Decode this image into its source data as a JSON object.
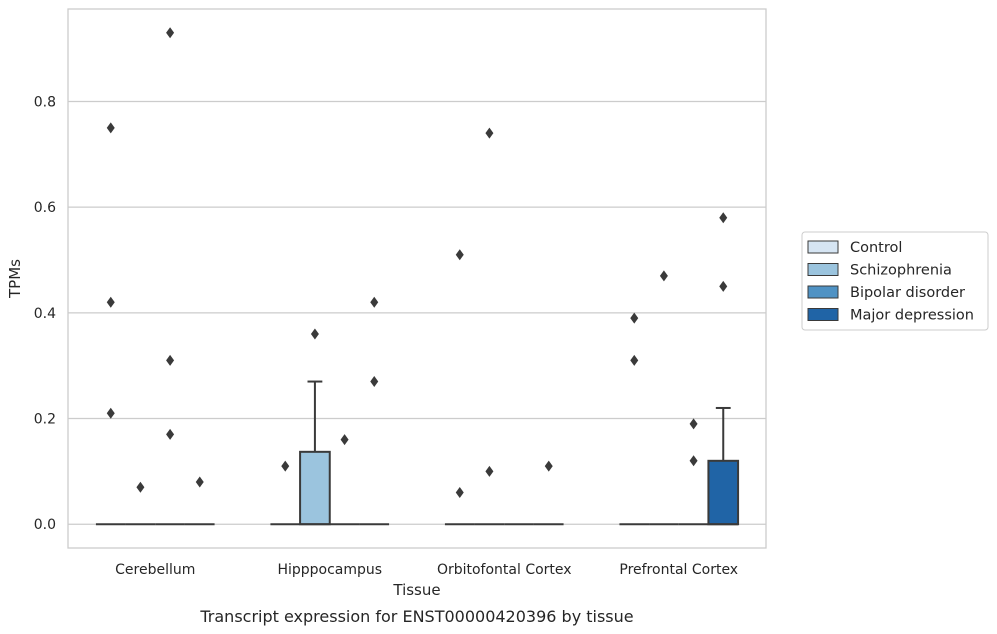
{
  "chart_data": {
    "type": "box",
    "caption": "Transcript expression for ENST00000420396 by tissue",
    "xlabel": "Tissue",
    "ylabel": "TPMs",
    "ylim": [
      -0.045,
      0.975
    ],
    "yticks": [
      0.0,
      0.2,
      0.4,
      0.6,
      0.8
    ],
    "ytick_labels": [
      "0.0",
      "0.2",
      "0.4",
      "0.6",
      "0.8"
    ],
    "grid": "horizontal",
    "legend_position": "right",
    "categories": [
      "Cerebellum",
      "Hipppocampus",
      "Orbitofontal Cortex",
      "Prefrontal Cortex"
    ],
    "series": [
      {
        "name": "Control",
        "color": "#d6e5f3",
        "boxes": [
          {
            "q1": 0,
            "median": 0,
            "q3": 0,
            "whisker_low": 0,
            "whisker_high": 0,
            "outliers": [
              0.75,
              0.42,
              0.21
            ]
          },
          {
            "q1": 0,
            "median": 0,
            "q3": 0,
            "whisker_low": 0,
            "whisker_high": 0,
            "outliers": [
              0.11
            ]
          },
          {
            "q1": 0,
            "median": 0,
            "q3": 0,
            "whisker_low": 0,
            "whisker_high": 0,
            "outliers": [
              0.51,
              0.06
            ]
          },
          {
            "q1": 0,
            "median": 0,
            "q3": 0,
            "whisker_low": 0,
            "whisker_high": 0,
            "outliers": [
              0.39,
              0.31
            ]
          }
        ]
      },
      {
        "name": "Schizophrenia",
        "color": "#9bc4de",
        "boxes": [
          {
            "q1": 0,
            "median": 0,
            "q3": 0,
            "whisker_low": 0,
            "whisker_high": 0,
            "outliers": [
              0.07
            ]
          },
          {
            "q1": 0,
            "median": 0,
            "q3": 0.137,
            "whisker_low": 0,
            "whisker_high": 0.27,
            "outliers": [
              0.36
            ]
          },
          {
            "q1": 0,
            "median": 0,
            "q3": 0,
            "whisker_low": 0,
            "whisker_high": 0,
            "outliers": [
              0.74,
              0.1
            ]
          },
          {
            "q1": 0,
            "median": 0,
            "q3": 0,
            "whisker_low": 0,
            "whisker_high": 0,
            "outliers": [
              0.47
            ]
          }
        ]
      },
      {
        "name": "Bipolar disorder",
        "color": "#4f92c4",
        "boxes": [
          {
            "q1": 0,
            "median": 0,
            "q3": 0,
            "whisker_low": 0,
            "whisker_high": 0,
            "outliers": [
              0.93,
              0.31,
              0.17
            ]
          },
          {
            "q1": 0,
            "median": 0,
            "q3": 0,
            "whisker_low": 0,
            "whisker_high": 0,
            "outliers": [
              0.16
            ]
          },
          {
            "q1": 0,
            "median": 0,
            "q3": 0,
            "whisker_low": 0,
            "whisker_high": 0,
            "outliers": []
          },
          {
            "q1": 0,
            "median": 0,
            "q3": 0,
            "whisker_low": 0,
            "whisker_high": 0,
            "outliers": [
              0.19,
              0.12
            ]
          }
        ]
      },
      {
        "name": "Major depression",
        "color": "#2064a6",
        "boxes": [
          {
            "q1": 0,
            "median": 0,
            "q3": 0,
            "whisker_low": 0,
            "whisker_high": 0,
            "outliers": [
              0.08
            ]
          },
          {
            "q1": 0,
            "median": 0,
            "q3": 0,
            "whisker_low": 0,
            "whisker_high": 0,
            "outliers": [
              0.42,
              0.27
            ]
          },
          {
            "q1": 0,
            "median": 0,
            "q3": 0,
            "whisker_low": 0,
            "whisker_high": 0,
            "outliers": [
              0.11
            ]
          },
          {
            "q1": 0,
            "median": 0,
            "q3": 0.12,
            "whisker_low": 0,
            "whisker_high": 0.22,
            "outliers": [
              0.58,
              0.45
            ]
          }
        ]
      }
    ]
  }
}
